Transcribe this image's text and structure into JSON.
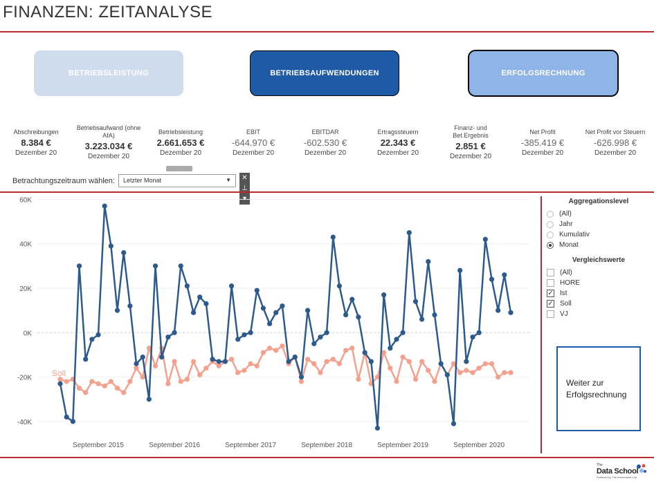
{
  "page": {
    "title": "FINANZEN: ZEITANALYSE"
  },
  "nav": {
    "betriebsleistung": "BETRIEBSLEISTUNG",
    "betriebsaufwendungen": "BETRIEBSAUFWENDUNGEN",
    "erfolgsrechnung": "ERFOLGSRECHNUNG"
  },
  "kpis": [
    {
      "label": "Abschreibungen",
      "value": "8.384 €",
      "period": "Dezember 20"
    },
    {
      "label": "Betriebsaufwand (ohne AfA)",
      "value": "3.223.034 €",
      "period": "Dezember 20"
    },
    {
      "label": "Betriebsleistung",
      "value": "2.661.653 €",
      "period": "Dezember 20"
    },
    {
      "label": "EBIT",
      "value": "-644.970 €",
      "period": "Dezember 20"
    },
    {
      "label": "EBITDAR",
      "value": "-602.530 €",
      "period": "Dezember 20"
    },
    {
      "label": "Ertragssteuern",
      "value": "22.343 €",
      "period": "Dezember 20"
    },
    {
      "label": "Finanz- und Bet.Ergebnis",
      "value": "2.851 €",
      "period": "Dezember 20"
    },
    {
      "label": "Net Profit",
      "value": "-385.419 €",
      "period": "Dezember 20"
    },
    {
      "label": "Net Profit vor Steuern",
      "value": "-626.998 €",
      "period": "Dezember 20"
    }
  ],
  "filter": {
    "label": "Betrachtungszeitraum wählen:",
    "selected": "Letzter Monat"
  },
  "legend": {
    "agg_title": "Aggregationslevel",
    "agg_options": [
      "(All)",
      "Jahr",
      "Kumulativ",
      "Monat"
    ],
    "agg_selected": "Monat",
    "cmp_title": "Vergleichswerte",
    "cmp_options": [
      {
        "label": "(All)",
        "checked": false
      },
      {
        "label": "HORE",
        "checked": false
      },
      {
        "label": "Ist",
        "checked": true
      },
      {
        "label": "Soll",
        "checked": true
      },
      {
        "label": "VJ",
        "checked": false
      }
    ]
  },
  "next_button": {
    "line1": "Weiter zur",
    "line2": "Erfolgsrechnung"
  },
  "logo": {
    "small": "The",
    "main": "Data School",
    "sub": "Powered by The Information Lab"
  },
  "colors": {
    "ist": "#2c5a8c",
    "soll": "#f4a08c",
    "accent": "#c0272d"
  },
  "chart_data": {
    "type": "line",
    "title": "",
    "xlabel": "",
    "ylabel": "",
    "ylim": [
      -50000,
      62000
    ],
    "yticks": [
      60000,
      40000,
      20000,
      0,
      -20000,
      -40000
    ],
    "ytick_labels": [
      "60K",
      "40K",
      "20K",
      "0K",
      "-20K",
      "-40K"
    ],
    "xtick_labels": [
      "September 2015",
      "September 2016",
      "September 2017",
      "September 2018",
      "September 2019",
      "September 2020"
    ],
    "soll_label": "Soll",
    "series": [
      {
        "name": "Ist",
        "values": [
          -23000,
          -38000,
          -40000,
          30000,
          -12000,
          -3000,
          -1000,
          57000,
          39000,
          10000,
          36000,
          12000,
          -14000,
          -11000,
          -30000,
          30000,
          -11000,
          -2000,
          0,
          30000,
          21000,
          9000,
          16000,
          13000,
          -12000,
          -13000,
          -13000,
          21000,
          -3000,
          -1000,
          0,
          19000,
          11000,
          4000,
          9000,
          12000,
          -13000,
          -11000,
          -20000,
          10000,
          -5000,
          -2000,
          0,
          43000,
          21000,
          8000,
          15000,
          7000,
          -9000,
          -13000,
          -43000,
          17000,
          -7000,
          -3000,
          0,
          45000,
          14000,
          6000,
          32000,
          8000,
          -14000,
          -19000,
          -41000,
          28000,
          -13000,
          -2000,
          0,
          42000,
          24000,
          10000,
          26000,
          9000
        ]
      },
      {
        "name": "Soll",
        "values": [
          -21000,
          -22000,
          -21000,
          -25000,
          -27000,
          -22000,
          -23000,
          -24000,
          -22000,
          -25000,
          -27000,
          -22000,
          -16000,
          -20000,
          -7000,
          -15000,
          -7000,
          -23000,
          -13000,
          -22000,
          -21000,
          -13000,
          -19000,
          -16000,
          -13000,
          -15000,
          -13000,
          -12000,
          -18000,
          -17000,
          -14000,
          -15000,
          -9000,
          -7000,
          -8000,
          -6000,
          -14000,
          -11000,
          -22000,
          -12000,
          -14000,
          -18000,
          -13000,
          -12000,
          -14000,
          -8000,
          -7000,
          -21000,
          -9000,
          -23000,
          -20000,
          -9000,
          -16000,
          -22000,
          -11000,
          -13000,
          -21000,
          -13000,
          -17000,
          -22000,
          -14000,
          -19000,
          -14000,
          -18000,
          -17000,
          -18000,
          -16000,
          -14000,
          -14000,
          -20000,
          -18000,
          -18000
        ]
      }
    ]
  }
}
